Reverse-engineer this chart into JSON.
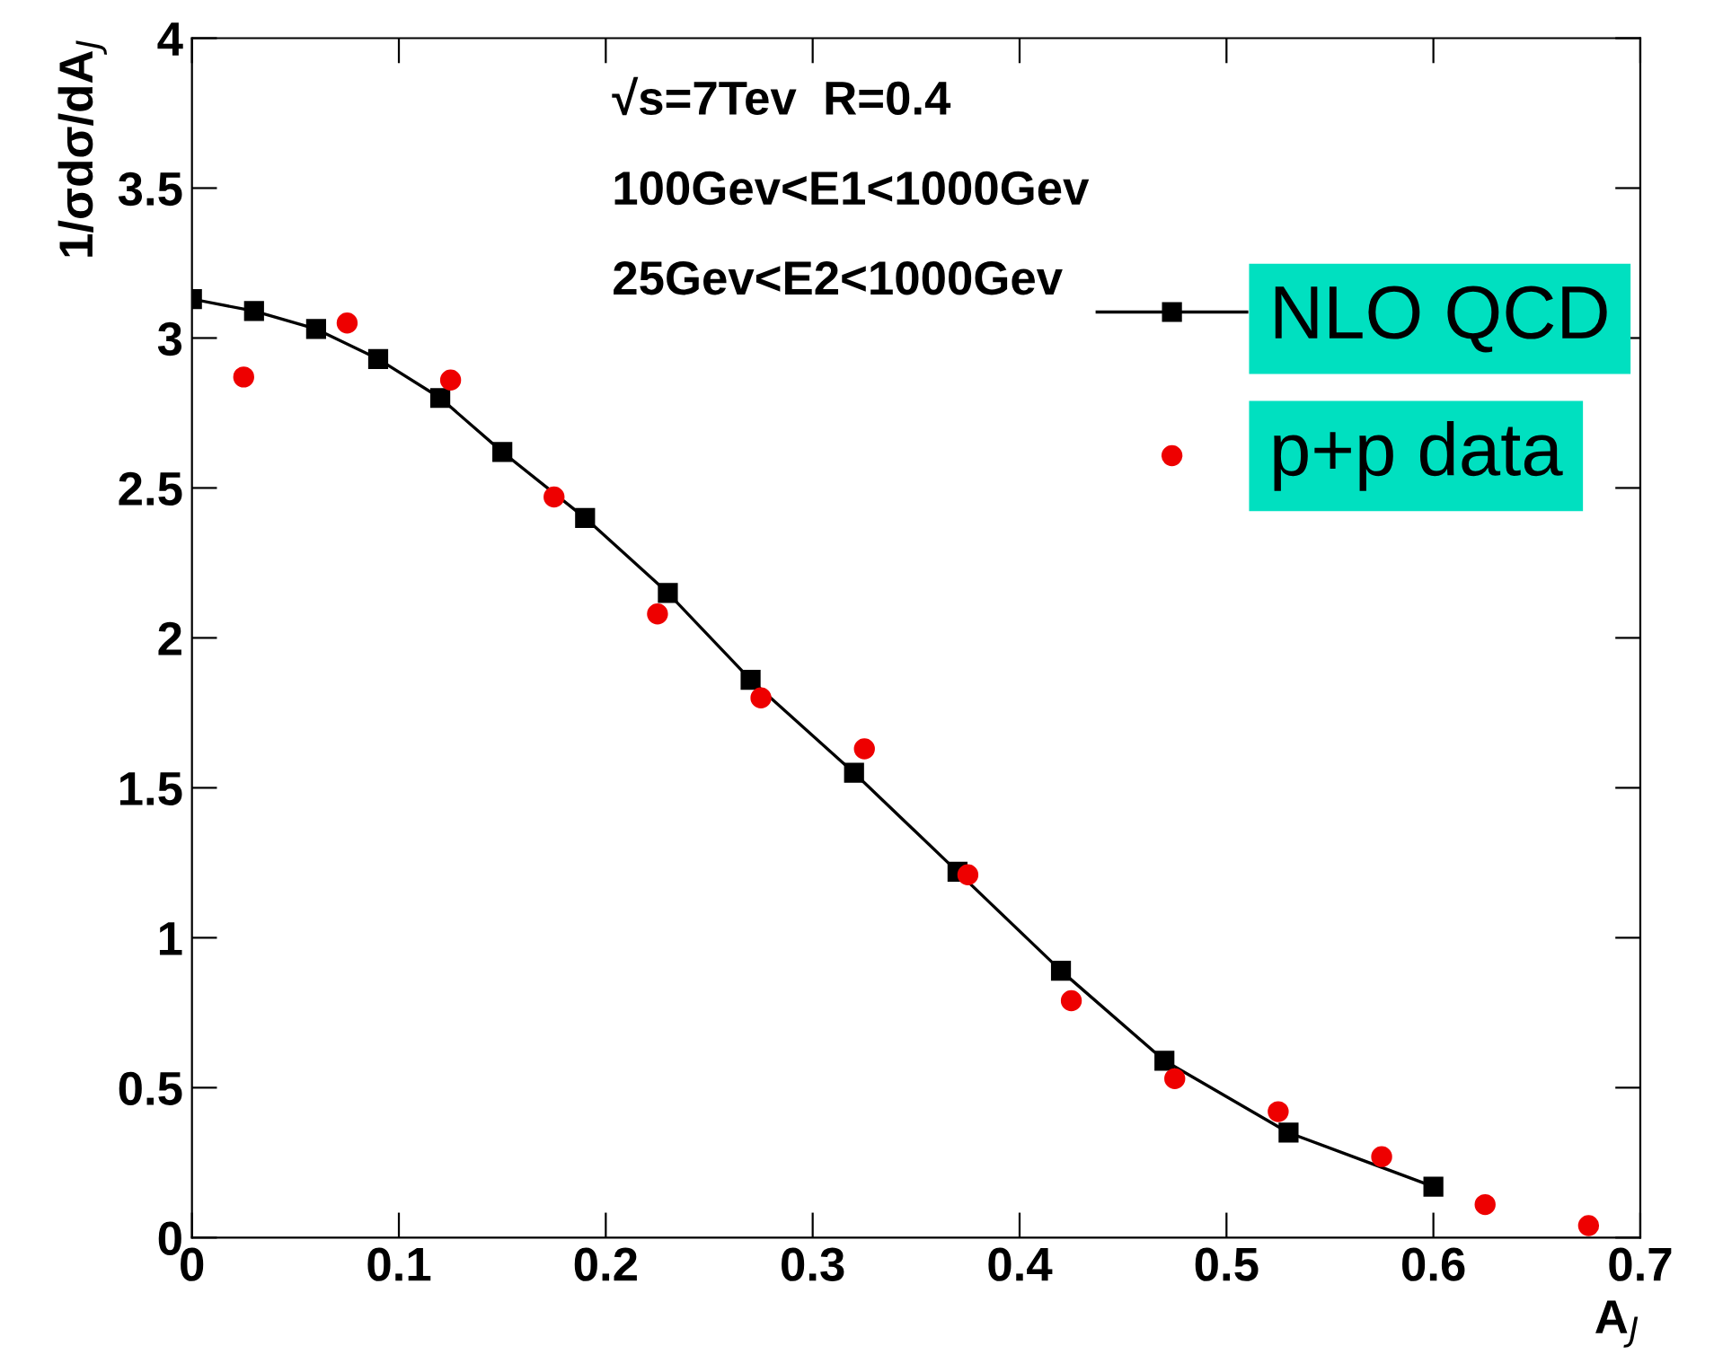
{
  "chart_data": {
    "type": "line",
    "xlabel": "A$_{J}$",
    "ylabel": "1/σdσ/dA$_{J}$",
    "annotations": [
      "√s=7Tev  R=0.4",
      "100Gev<E1<1000Gev",
      "25Gev<E2<1000Gev"
    ],
    "xlim": [
      0,
      0.7
    ],
    "xticks": [
      0,
      0.1,
      0.2,
      0.3,
      0.4,
      0.5,
      0.6,
      0.7
    ],
    "ylim": [
      0,
      4
    ],
    "yticks": [
      0,
      0.5,
      1,
      1.5,
      2,
      2.5,
      3,
      3.5,
      4
    ],
    "grid": false,
    "legend": "top right",
    "series": [
      {
        "name": "NLO QCD",
        "marker": "square",
        "color": "#000000",
        "x": [
          0,
          0.03,
          0.06,
          0.09,
          0.12,
          0.15,
          0.19,
          0.23,
          0.27,
          0.32,
          0.37,
          0.42,
          0.47,
          0.53,
          0.6
        ],
        "values": [
          3.13,
          3.09,
          3.03,
          2.93,
          2.8,
          2.62,
          2.4,
          2.15,
          1.86,
          1.55,
          1.22,
          0.89,
          0.59,
          0.35,
          0.17
        ]
      },
      {
        "name": "p+p data",
        "type": "scatter",
        "marker": "circle",
        "color": "#ee0000",
        "x": [
          0.025,
          0.075,
          0.125,
          0.175,
          0.225,
          0.275,
          0.325,
          0.375,
          0.425,
          0.475,
          0.525,
          0.575,
          0.625,
          0.675
        ],
        "values": [
          2.87,
          3.05,
          2.86,
          2.47,
          2.08,
          1.8,
          1.63,
          1.21,
          0.79,
          0.53,
          0.42,
          0.27,
          0.11,
          0.04
        ]
      }
    ]
  }
}
